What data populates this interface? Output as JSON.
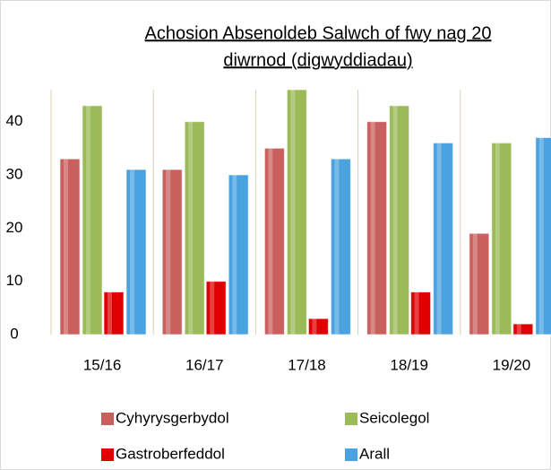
{
  "chart_data": {
    "type": "bar",
    "title": [
      "Achosion Absenoldeb Salwch of fwy nag 20",
      "diwrnod (digwyddiadau)"
    ],
    "categories": [
      "15/16",
      "16/17",
      "17/18",
      "18/19",
      "19/20"
    ],
    "series": [
      {
        "name": "Cyhyrysgerbydol",
        "color": "#c9605e",
        "values": [
          33,
          31,
          35,
          40,
          19
        ]
      },
      {
        "name": "Seicolegol",
        "color": "#9bbb59",
        "values": [
          43,
          40,
          46,
          43,
          36
        ]
      },
      {
        "name": "Gastroberfeddol",
        "color": "#e00000",
        "values": [
          8,
          10,
          3,
          8,
          2
        ]
      },
      {
        "name": "Arall",
        "color": "#4aa3e0",
        "values": [
          31,
          30,
          33,
          36,
          37
        ]
      }
    ],
    "ylim": [
      0,
      46
    ],
    "yticks": [
      0,
      10,
      20,
      30,
      40
    ],
    "grid": false,
    "legend": "bottom"
  }
}
